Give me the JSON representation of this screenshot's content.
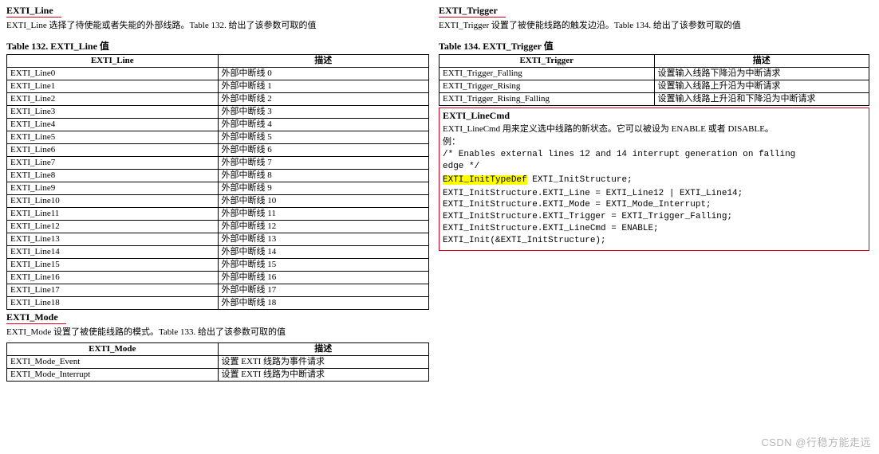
{
  "colors": {
    "underline": "#d9001b",
    "highlight": "#ffff00",
    "text": "#000000",
    "background": "#ffffff",
    "table_border": "#000000",
    "box_border": "#d9001b",
    "watermark": "rgba(120,120,120,0.55)"
  },
  "left": {
    "exti_line": {
      "title": "EXTI_Line",
      "desc": "EXTI_Line 选择了待使能或者失能的外部线路。Table 132. 给出了该参数可取的值",
      "caption": "Table 132. EXTI_Line 值",
      "headers": [
        "EXTI_Line",
        "描述"
      ],
      "rows": [
        [
          "EXTI_Line0",
          "外部中断线 0"
        ],
        [
          "EXTI_Line1",
          "外部中断线 1"
        ],
        [
          "EXTI_Line2",
          "外部中断线 2"
        ],
        [
          "EXTI_Line3",
          "外部中断线 3"
        ],
        [
          "EXTI_Line4",
          "外部中断线 4"
        ],
        [
          "EXTI_Line5",
          "外部中断线 5"
        ],
        [
          "EXTI_Line6",
          "外部中断线 6"
        ],
        [
          "EXTI_Line7",
          "外部中断线 7"
        ],
        [
          "EXTI_Line8",
          "外部中断线 8"
        ],
        [
          "EXTI_Line9",
          "外部中断线 9"
        ],
        [
          "EXTI_Line10",
          "外部中断线 10"
        ],
        [
          "EXTI_Line11",
          "外部中断线 11"
        ],
        [
          "EXTI_Line12",
          "外部中断线 12"
        ],
        [
          "EXTI_Line13",
          "外部中断线 13"
        ],
        [
          "EXTI_Line14",
          "外部中断线 14"
        ],
        [
          "EXTI_Line15",
          "外部中断线 15"
        ],
        [
          "EXTI_Line16",
          "外部中断线 16"
        ],
        [
          "EXTI_Line17",
          "外部中断线 17"
        ],
        [
          "EXTI_Line18",
          "外部中断线 18"
        ]
      ]
    },
    "exti_mode": {
      "title": "EXTI_Mode",
      "desc": "EXTI_Mode 设置了被使能线路的模式。Table 133. 给出了该参数可取的值",
      "headers": [
        "EXTI_Mode",
        "描述"
      ],
      "rows": [
        [
          "EXTI_Mode_Event",
          "设置 EXTI 线路为事件请求"
        ],
        [
          "EXTI_Mode_Interrupt",
          "设置 EXTI 线路为中断请求"
        ]
      ]
    }
  },
  "right": {
    "exti_trigger": {
      "title": "EXTI_Trigger",
      "desc": "EXTI_Trigger 设置了被使能线路的触发边沿。Table 134. 给出了该参数可取的值",
      "caption": "Table 134. EXTI_Trigger 值",
      "headers": [
        "EXTI_Trigger",
        "描述"
      ],
      "rows": [
        [
          "EXTI_Trigger_Falling",
          "设置输入线路下降沿为中断请求"
        ],
        [
          "EXTI_Trigger_Rising",
          "设置输入线路上升沿为中断请求"
        ],
        [
          "EXTI_Trigger_Rising_Falling",
          "设置输入线路上升沿和下降沿为中断请求"
        ]
      ]
    },
    "exti_linecmd": {
      "title": "EXTI_LineCmd",
      "desc": "EXTI_LineCmd 用来定义选中线路的新状态。它可以被设为 ENABLE 或者 DISABLE。",
      "example_label": "例：",
      "code_comment": "/* Enables external lines 12 and 14 interrupt generation on falling\nedge */",
      "code_hl": "EXTI_InitTypeDef",
      "code_hl_rest": " EXTI_InitStructure;",
      "code_body": "EXTI_InitStructure.EXTI_Line = EXTI_Line12 | EXTI_Line14;\nEXTI_InitStructure.EXTI_Mode = EXTI_Mode_Interrupt;\nEXTI_InitStructure.EXTI_Trigger = EXTI_Trigger_Falling;\nEXTI_InitStructure.EXTI_LineCmd = ENABLE;\nEXTI_Init(&EXTI_InitStructure);"
    }
  },
  "watermark": "CSDN @行稳方能走远"
}
